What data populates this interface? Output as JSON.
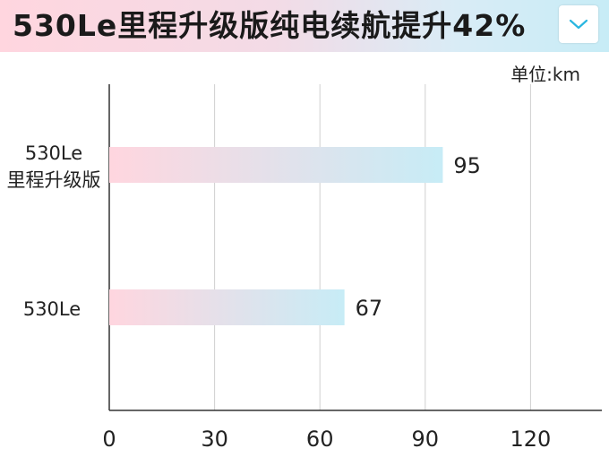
{
  "header": {
    "title": "530Le里程升级版纯电续航提升42%",
    "dropdown_icon": "chevron-down-icon",
    "accent_color": "#29b6e0"
  },
  "chart_data": {
    "type": "bar",
    "orientation": "horizontal",
    "categories": [
      [
        "530Le",
        "里程升级版"
      ],
      [
        "530Le"
      ]
    ],
    "values": [
      95,
      67
    ],
    "value_labels": [
      "95",
      "67"
    ],
    "unit_label": "单位:km",
    "xticks": [
      0,
      30,
      60,
      90,
      120
    ],
    "xtick_labels": [
      "0",
      "30",
      "60",
      "90",
      "120"
    ],
    "xlim": [
      0,
      140
    ],
    "grid": true,
    "bar_gradient": [
      "#ffd6df",
      "#c7ecf6"
    ]
  }
}
